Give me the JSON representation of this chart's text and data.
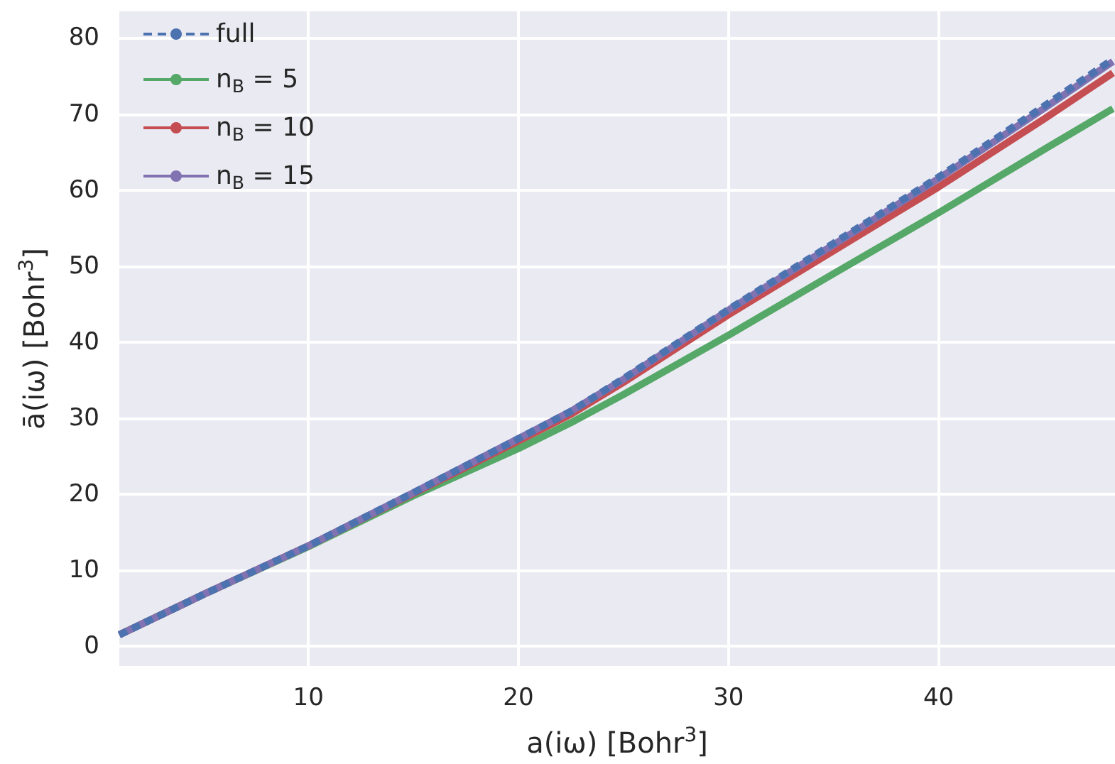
{
  "chart_data": {
    "type": "line",
    "xlabel": "a(iω) [Bohr$^{3}$]",
    "ylabel": "ā(iω) [Bohr$^{3}$]",
    "x": [
      1,
      5,
      10,
      15,
      20,
      22.5,
      25,
      30,
      35,
      40,
      45,
      48.3
    ],
    "xlim": [
      1,
      48.4
    ],
    "xticks": [
      10,
      20,
      30,
      40
    ],
    "ylim": [
      -2.6,
      83.5
    ],
    "yticks": [
      0,
      10,
      20,
      30,
      40,
      50,
      60,
      70,
      80
    ],
    "grid": true,
    "legend": "top left",
    "marker": "none",
    "series": [
      {
        "name": "full",
        "color": "#4c72b0",
        "line_style": "dashed",
        "values": [
          1.5,
          6.8,
          13.2,
          20.2,
          27.3,
          30.9,
          35.2,
          44.3,
          53,
          61.7,
          71,
          77.2
        ]
      },
      {
        "name": "n$_{B}$ = 5",
        "color": "#55a868",
        "line_style": "solid",
        "values": [
          1.5,
          6.8,
          13.1,
          19.8,
          26.0,
          29.4,
          33.1,
          40.9,
          49,
          57.0,
          65.3,
          70.7
        ]
      },
      {
        "name": "n$_{B}$ = 10",
        "color": "#c44e52",
        "line_style": "solid",
        "values": [
          1.5,
          6.8,
          13.2,
          20.1,
          27.0,
          30.5,
          34.7,
          43.6,
          52,
          60.4,
          69.3,
          75.4
        ]
      },
      {
        "name": "n$_{B}$ = 15",
        "color": "#8172b2",
        "line_style": "solid",
        "values": [
          1.5,
          6.8,
          13.2,
          20.2,
          27.3,
          30.9,
          35.1,
          44.2,
          52.8,
          61.5,
          70.7,
          76.9
        ]
      }
    ]
  }
}
